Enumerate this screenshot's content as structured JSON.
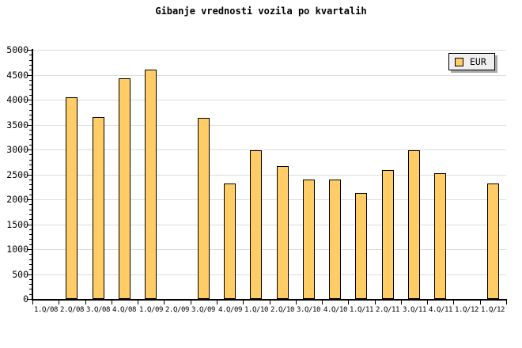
{
  "chart_data": {
    "type": "bar",
    "title": "Gibanje vrednosti vozila po kvartalih",
    "categories": [
      "1.Q/08",
      "2.Q/08",
      "3.Q/08",
      "4.Q/08",
      "1.Q/09",
      "2.Q/09",
      "3.Q/09",
      "4.Q/09",
      "1.Q/10",
      "2.Q/10",
      "3.Q/10",
      "4.Q/10",
      "1.Q/11",
      "2.Q/11",
      "3.Q/11",
      "4.Q/11",
      "1.Q/12",
      "1.Q/12"
    ],
    "series": [
      {
        "name": "EUR",
        "values": [
          null,
          4050,
          3650,
          4430,
          4610,
          null,
          3640,
          2320,
          2990,
          2660,
          2390,
          2390,
          2130,
          2590,
          2990,
          2520,
          null,
          2320
        ]
      }
    ],
    "xlabel": "",
    "ylabel": "",
    "ylim": [
      0,
      5000
    ],
    "y_tick_step": 500,
    "y_minor_tick_step": 100,
    "grid": true,
    "legend_position": "top-right",
    "colors": {
      "bar_fill": "#FFCC66",
      "bar_border": "#000000",
      "gridline": "#DDDDDD",
      "axis": "#000000",
      "legend_bg": "#F0F0F0",
      "legend_shadow": "#AAAAAA",
      "background": "#FFFFFF",
      "text": "#000000"
    }
  }
}
